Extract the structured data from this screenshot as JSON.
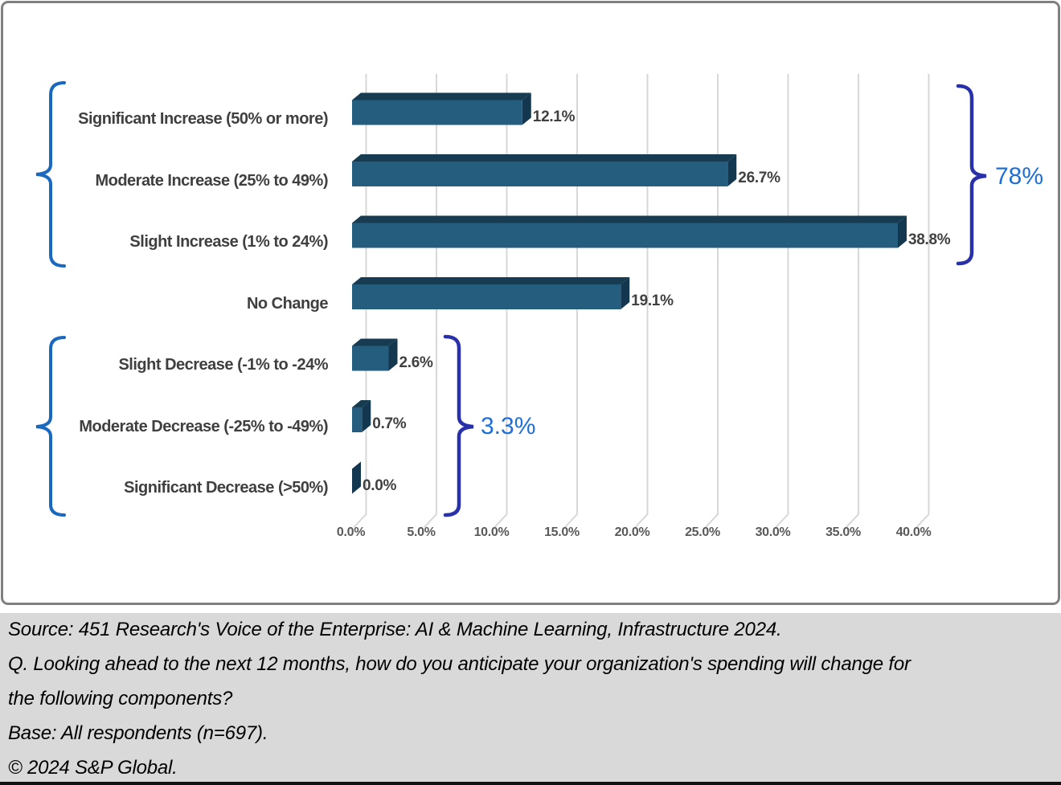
{
  "chart_data": {
    "type": "bar",
    "orientation": "horizontal",
    "style": "3d",
    "title": "",
    "xlabel": "",
    "ylabel": "",
    "categories": [
      "Significant Increase (50% or more)",
      "Moderate Increase (25% to 49%)",
      "Slight Increase (1% to 24%)",
      "No Change",
      "Slight Decrease (-1% to -24%",
      "Moderate Decrease (-25% to -49%)",
      "Significant Decrease (>50%)"
    ],
    "values": [
      12.1,
      26.7,
      38.8,
      19.1,
      2.6,
      0.7,
      0.0
    ],
    "value_labels": [
      "12.1%",
      "26.7%",
      "38.8%",
      "19.1%",
      "2.6%",
      "0.7%",
      "0.0%"
    ],
    "x_ticks": [
      "0.0%",
      "5.0%",
      "10.0%",
      "15.0%",
      "20.0%",
      "25.0%",
      "30.0%",
      "35.0%",
      "40.0%"
    ],
    "xlim": [
      0,
      40
    ],
    "grid": true,
    "legend": false,
    "bar_color": "#245D7D",
    "bar_top_color": "#173C52",
    "bar_side_color": "#12374E",
    "gridline_color": "#D7D7D7",
    "left_bracket_color": "#1B69BE",
    "right_bracket_color": "#2830AA",
    "annotation_text_color": "#1E6FD8",
    "annotations": [
      {
        "text": "78%"
      },
      {
        "text": "3.3%"
      }
    ]
  },
  "footer": {
    "lines": [
      "Source: 451 Research's Voice of the Enterprise: AI & Machine Learning, Infrastructure 2024.",
      "Q. Looking ahead to the next 12 months, how do you anticipate your organization's spending will change for",
      "the following components?",
      "Base: All respondents (n=697).",
      "© 2024 S&P Global."
    ]
  }
}
